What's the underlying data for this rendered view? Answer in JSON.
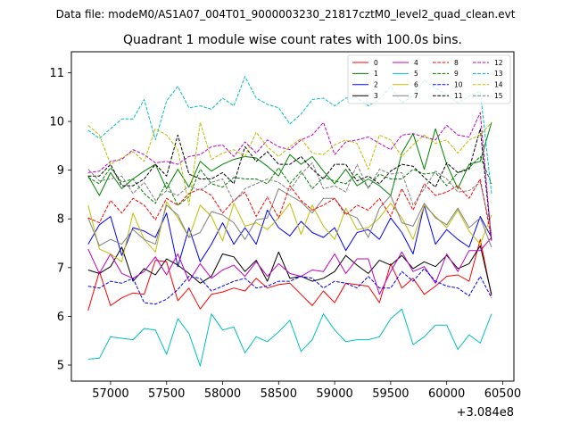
{
  "chart_data": {
    "type": "line",
    "suptitle": "Data file: modeM0/AS1A07_004T01_9000003230_21817cztM0_level2_quad_clean.evt",
    "title": "Quadrant 1 module wise count rates with 100.0s bins.",
    "xlabel": "",
    "ylabel": "",
    "x_offset_label": "+3.084e8",
    "xlim": [
      56650,
      60600
    ],
    "ylim": [
      4.67,
      11.43
    ],
    "xticks": [
      57000,
      57500,
      58000,
      58500,
      59000,
      59500,
      60000,
      60500
    ],
    "yticks": [
      5,
      6,
      7,
      8,
      9,
      10,
      11
    ],
    "grid": false,
    "legend": {
      "location": "top-right",
      "columns": 4
    },
    "x": [
      56800,
      56900,
      57000,
      57100,
      57200,
      57300,
      57400,
      57500,
      57600,
      57700,
      57800,
      57900,
      58000,
      58100,
      58200,
      58300,
      58400,
      58500,
      58600,
      58700,
      58800,
      58900,
      59000,
      59100,
      59200,
      59300,
      59400,
      59500,
      59600,
      59700,
      59800,
      59900,
      60000,
      60100,
      60200,
      60300,
      60400
    ],
    "series": [
      {
        "name": "0",
        "color": "#ff0000",
        "dash": "solid",
        "values": [
          6.12,
          6.92,
          6.22,
          6.38,
          6.48,
          6.45,
          7.15,
          7.12,
          6.32,
          6.58,
          6.15,
          6.45,
          6.5,
          6.58,
          6.52,
          6.78,
          6.58,
          6.65,
          6.68,
          6.45,
          6.22,
          6.52,
          6.28,
          6.68,
          6.65,
          6.62,
          6.28,
          7.08,
          6.58,
          6.78,
          6.45,
          6.62,
          6.82,
          6.85,
          6.72,
          7.58,
          6.42
        ]
      },
      {
        "name": "1",
        "color": "#008000",
        "dash": "solid",
        "values": [
          8.88,
          8.48,
          8.95,
          8.62,
          8.82,
          8.98,
          9.12,
          8.62,
          9.02,
          8.65,
          9.18,
          8.98,
          9.12,
          9.22,
          9.28,
          9.25,
          9.08,
          8.88,
          9.32,
          9.12,
          9.28,
          8.98,
          8.72,
          9.02,
          8.68,
          8.82,
          8.68,
          8.48,
          9.35,
          9.75,
          9.02,
          9.85,
          9.12,
          8.62,
          9.12,
          9.18,
          9.98
        ]
      },
      {
        "name": "2",
        "color": "#0000ff",
        "dash": "solid",
        "values": [
          7.48,
          7.88,
          8.05,
          7.25,
          7.82,
          7.75,
          7.62,
          8.12,
          7.02,
          7.82,
          7.12,
          7.48,
          7.92,
          7.48,
          7.82,
          7.48,
          8.18,
          7.82,
          7.65,
          7.95,
          7.72,
          7.62,
          7.82,
          7.35,
          7.72,
          7.78,
          7.58,
          8.02,
          7.72,
          7.28,
          8.28,
          7.48,
          7.78,
          7.58,
          7.42,
          8.05,
          7.62
        ]
      },
      {
        "name": "3",
        "color": "#000000",
        "dash": "solid",
        "values": [
          6.95,
          6.88,
          7.02,
          7.42,
          6.72,
          6.98,
          6.85,
          7.18,
          7.05,
          6.88,
          6.68,
          6.82,
          7.28,
          7.22,
          6.92,
          7.15,
          6.72,
          7.32,
          6.78,
          6.82,
          6.72,
          6.78,
          6.92,
          7.25,
          7.05,
          6.88,
          7.15,
          7.05,
          7.25,
          6.98,
          7.12,
          7.02,
          7.25,
          6.98,
          7.08,
          7.45,
          6.45
        ]
      },
      {
        "name": "4",
        "color": "#bf00bf",
        "dash": "solid",
        "values": [
          7.38,
          6.88,
          7.28,
          6.88,
          6.78,
          6.92,
          7.22,
          6.85,
          7.28,
          6.72,
          7.08,
          6.78,
          6.95,
          7.05,
          6.82,
          7.12,
          6.82,
          7.08,
          6.88,
          6.82,
          6.95,
          6.92,
          7.28,
          6.88,
          7.18,
          7.18,
          6.45,
          6.92,
          7.32,
          6.92,
          7.02,
          6.68,
          7.28,
          6.92,
          7.35,
          7.35,
          7.62
        ]
      },
      {
        "name": "5",
        "color": "#00bfbf",
        "dash": "solid",
        "values": [
          5.12,
          5.14,
          5.58,
          5.55,
          5.52,
          5.75,
          5.72,
          5.22,
          5.95,
          5.65,
          4.98,
          6.05,
          5.72,
          5.78,
          5.25,
          5.58,
          5.48,
          5.68,
          5.92,
          5.28,
          5.52,
          6.05,
          5.72,
          5.48,
          5.52,
          5.52,
          5.58,
          5.95,
          6.15,
          5.42,
          5.58,
          5.82,
          5.82,
          5.32,
          5.62,
          5.45,
          6.05
        ]
      },
      {
        "name": "6",
        "color": "#bfbf00",
        "dash": "solid",
        "values": [
          8.28,
          7.38,
          7.28,
          7.12,
          8.12,
          7.58,
          7.32,
          8.35,
          8.02,
          7.62,
          8.28,
          8.05,
          7.55,
          8.32,
          7.85,
          7.92,
          7.78,
          8.02,
          8.32,
          7.68,
          8.28,
          7.85,
          7.58,
          8.22,
          7.78,
          7.82,
          8.02,
          8.32,
          8.02,
          7.58,
          8.28,
          8.05,
          7.82,
          8.18,
          7.75,
          7.48,
          8.08
        ]
      },
      {
        "name": "7",
        "color": "#808080",
        "dash": "solid",
        "values": [
          8.02,
          7.45,
          7.58,
          7.48,
          7.78,
          7.58,
          7.48,
          8.28,
          8.08,
          7.62,
          7.72,
          8.15,
          8.08,
          7.92,
          7.58,
          7.98,
          8.02,
          8.62,
          8.48,
          8.35,
          8.12,
          8.42,
          8.42,
          8.12,
          8.02,
          7.62,
          8.22,
          8.48,
          7.92,
          7.85,
          8.32,
          8.02,
          7.88,
          8.22,
          7.82,
          8.02,
          7.42
        ]
      },
      {
        "name": "8",
        "color": "#ff0000",
        "dash": "dashed",
        "values": [
          8.02,
          7.92,
          8.38,
          8.12,
          8.42,
          8.28,
          7.98,
          8.42,
          8.28,
          8.52,
          8.62,
          8.48,
          8.12,
          8.38,
          8.55,
          8.05,
          8.45,
          8.02,
          8.68,
          8.38,
          8.18,
          8.28,
          8.42,
          8.08,
          8.28,
          8.18,
          8.42,
          8.05,
          8.62,
          8.18,
          8.72,
          8.48,
          8.55,
          8.68,
          8.42,
          8.82,
          7.58
        ]
      },
      {
        "name": "9",
        "color": "#008000",
        "dash": "dashed",
        "values": [
          8.85,
          8.72,
          9.05,
          8.75,
          8.82,
          8.52,
          8.32,
          8.75,
          8.28,
          8.45,
          9.02,
          8.72,
          8.65,
          8.85,
          8.82,
          8.82,
          8.72,
          9.05,
          8.72,
          8.98,
          8.62,
          8.85,
          8.78,
          8.72,
          8.92,
          8.65,
          8.92,
          8.82,
          8.82,
          9.02,
          8.92,
          8.95,
          8.68,
          8.95,
          9.05,
          9.28,
          8.72
        ]
      },
      {
        "name": "10",
        "color": "#0000ff",
        "dash": "dashed",
        "values": [
          6.62,
          6.58,
          6.72,
          6.68,
          6.78,
          6.28,
          6.25,
          6.35,
          6.55,
          6.82,
          6.78,
          6.52,
          6.62,
          6.72,
          6.78,
          6.58,
          6.62,
          6.72,
          6.72,
          6.82,
          6.78,
          6.58,
          6.72,
          6.68,
          6.58,
          6.82,
          6.58,
          6.58,
          6.92,
          6.72,
          6.98,
          6.72,
          6.62,
          6.58,
          6.42,
          6.82,
          6.38
        ]
      },
      {
        "name": "11",
        "color": "#000000",
        "dash": "dashed",
        "values": [
          8.88,
          8.88,
          9.12,
          8.68,
          8.68,
          8.82,
          9.12,
          8.88,
          9.72,
          8.92,
          8.82,
          8.82,
          8.95,
          8.72,
          9.48,
          9.18,
          9.38,
          9.12,
          9.12,
          9.28,
          9.02,
          8.82,
          9.12,
          9.12,
          8.78,
          8.88,
          8.72,
          8.98,
          9.12,
          9.08,
          8.85,
          8.65,
          9.15,
          8.95,
          9.02,
          9.85,
          7.55
        ]
      },
      {
        "name": "12",
        "color": "#bf00bf",
        "dash": "dashed",
        "values": [
          8.95,
          8.98,
          9.18,
          9.22,
          9.42,
          9.32,
          9.15,
          9.18,
          9.12,
          9.28,
          9.32,
          9.48,
          9.52,
          9.28,
          9.58,
          9.35,
          9.62,
          9.48,
          9.42,
          9.62,
          9.72,
          9.98,
          9.32,
          9.58,
          9.62,
          9.68,
          9.55,
          9.42,
          9.72,
          9.75,
          9.68,
          9.62,
          9.92,
          9.72,
          9.68,
          10.18,
          7.55
        ]
      },
      {
        "name": "13",
        "color": "#00bfbf",
        "dash": "dashed",
        "values": [
          9.82,
          9.65,
          9.85,
          10.05,
          10.05,
          10.45,
          9.62,
          10.42,
          10.72,
          10.28,
          10.32,
          10.25,
          10.48,
          10.32,
          10.92,
          10.48,
          10.35,
          10.28,
          9.95,
          10.15,
          10.45,
          10.48,
          10.32,
          10.48,
          10.48,
          10.32,
          10.45,
          10.72,
          10.38,
          10.52,
          10.85,
          10.68,
          10.55,
          10.38,
          10.52,
          10.62,
          8.52
        ]
      },
      {
        "name": "14",
        "color": "#bfbf00",
        "dash": "dashed",
        "values": [
          9.92,
          9.72,
          9.12,
          9.25,
          9.38,
          9.18,
          9.85,
          9.72,
          9.42,
          8.28,
          9.98,
          9.22,
          9.35,
          9.42,
          9.28,
          9.78,
          9.48,
          9.28,
          9.48,
          9.65,
          9.35,
          9.32,
          9.52,
          9.62,
          9.55,
          9.02,
          9.72,
          9.62,
          9.28,
          9.52,
          9.72,
          9.55,
          9.62,
          9.35,
          9.62,
          9.72,
          9.98
        ]
      },
      {
        "name": "15",
        "color": "#808080",
        "dash": "dashed",
        "values": [
          9.02,
          8.78,
          8.82,
          8.88,
          8.52,
          8.75,
          8.38,
          8.58,
          8.48,
          8.68,
          8.58,
          8.75,
          8.82,
          8.35,
          8.62,
          8.72,
          8.82,
          8.75,
          8.58,
          8.92,
          9.15,
          8.62,
          8.68,
          8.55,
          9.12,
          8.62,
          9.02,
          8.92,
          8.95,
          8.28,
          8.62,
          8.98,
          8.82,
          8.55,
          8.58,
          8.75,
          7.72
        ]
      }
    ]
  }
}
